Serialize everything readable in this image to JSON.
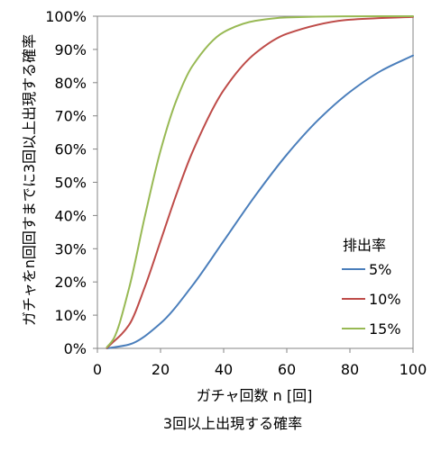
{
  "chart_data": {
    "type": "line",
    "title": "",
    "caption": "3回以上出現する確率",
    "xlabel": "ガチャ回数 n [回]",
    "ylabel": "ガチャをn回回すまでに3回以上出現する確率",
    "xlim": [
      0,
      100
    ],
    "ylim": [
      0,
      1
    ],
    "x_ticks": [
      0,
      20,
      40,
      60,
      80,
      100
    ],
    "x_tick_labels": [
      "0",
      "20",
      "40",
      "60",
      "80",
      "100"
    ],
    "y_ticks": [
      0,
      0.1,
      0.2,
      0.3,
      0.4,
      0.5,
      0.6,
      0.7,
      0.8,
      0.9,
      1.0
    ],
    "y_tick_labels": [
      "0%",
      "10%",
      "20%",
      "30%",
      "40%",
      "50%",
      "60%",
      "70%",
      "80%",
      "90%",
      "100%"
    ],
    "grid": false,
    "legend": {
      "title": "排出率",
      "position": "right"
    },
    "series": [
      {
        "name": "5%",
        "color": "#4a7ebb",
        "x": [
          3,
          10,
          20,
          30,
          40,
          50,
          60,
          70,
          80,
          90,
          100
        ],
        "y": [
          0.0001,
          0.0115,
          0.0755,
          0.1878,
          0.3233,
          0.4595,
          0.5832,
          0.6881,
          0.772,
          0.8362,
          0.8817
        ]
      },
      {
        "name": "10%",
        "color": "#be4b48",
        "x": [
          3,
          10,
          15,
          20,
          25,
          30,
          40,
          50,
          60,
          80,
          100
        ],
        "y": [
          0.001,
          0.0702,
          0.1841,
          0.3231,
          0.4629,
          0.5886,
          0.7772,
          0.8883,
          0.947,
          0.9896,
          0.9981
        ]
      },
      {
        "name": "15%",
        "color": "#98b954",
        "x": [
          3,
          5,
          10,
          15,
          20,
          25,
          30,
          40,
          50,
          60,
          80,
          100
        ],
        "y": [
          0.0034,
          0.0266,
          0.1798,
          0.3958,
          0.5951,
          0.7463,
          0.8486,
          0.952,
          0.9862,
          0.9964,
          0.9998,
          1.0
        ]
      }
    ]
  }
}
